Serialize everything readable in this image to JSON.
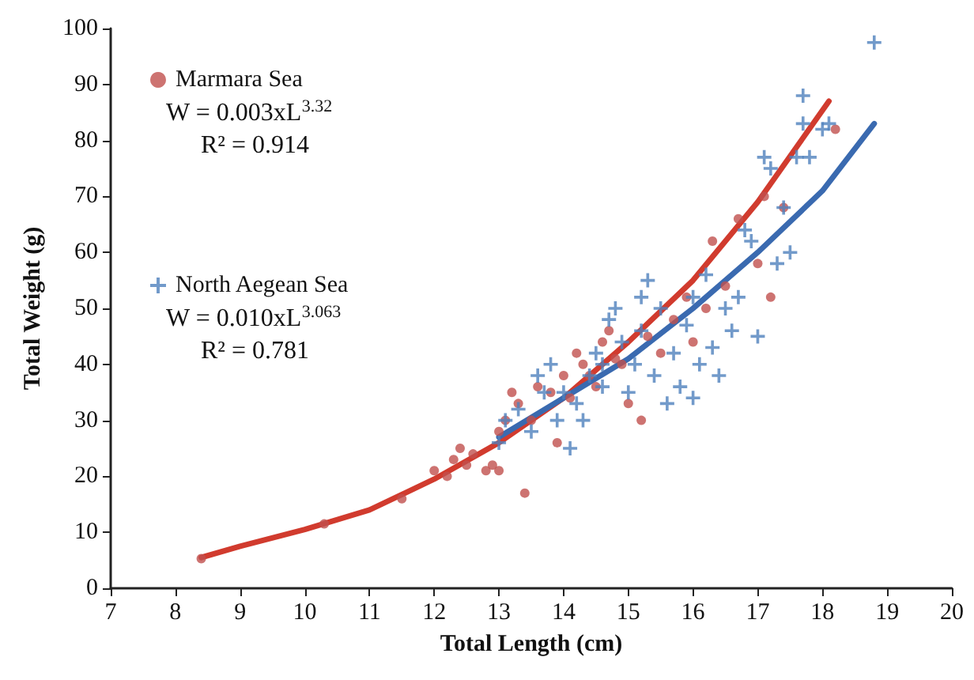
{
  "chart_data": {
    "type": "scatter",
    "xlabel": "Total Length (cm)",
    "ylabel": "Total Weight (g)",
    "xlim": [
      7,
      20
    ],
    "xticks": [
      7,
      8,
      9,
      10,
      11,
      12,
      13,
      14,
      15,
      16,
      17,
      18,
      19,
      20
    ],
    "ylim": [
      0,
      100
    ],
    "yticks": [
      0,
      10,
      20,
      30,
      40,
      50,
      60,
      70,
      80,
      90,
      100
    ],
    "grid": false,
    "legend": "top left",
    "annotations": [
      "W = 0.003xL$^{3.32}$",
      "R² = 0.914",
      "W = 0.010xL$^{3.063}$",
      "R² = 0.781"
    ],
    "series": [
      {
        "name": "Marmara Sea",
        "color": "#c0504d",
        "marker": "circle",
        "x": [
          8.4,
          10.3,
          11.5,
          12.0,
          12.2,
          12.3,
          12.4,
          12.5,
          12.6,
          12.8,
          12.9,
          13.0,
          13.4,
          13.0,
          13.1,
          13.2,
          13.3,
          13.5,
          13.6,
          13.8,
          14.0,
          14.1,
          14.2,
          14.3,
          14.4,
          14.5,
          14.6,
          14.7,
          14.8,
          15.0,
          15.2,
          15.3,
          15.5,
          15.7,
          15.9,
          16.0,
          16.2,
          16.3,
          16.5,
          16.7,
          17.0,
          17.2,
          17.4,
          18.2,
          17.1,
          13.9,
          14.9
        ],
        "values": [
          5.3,
          11.5,
          16,
          21,
          20,
          23,
          25,
          22,
          24,
          21,
          22,
          21,
          17,
          28,
          30,
          35,
          33,
          30,
          36,
          35,
          38,
          34,
          42,
          40,
          38,
          36,
          44,
          46,
          41,
          33,
          30,
          45,
          42,
          48,
          52,
          44,
          50,
          62,
          54,
          66,
          58,
          52,
          68,
          82,
          70,
          26,
          40
        ]
      },
      {
        "name": "North Aegean Sea",
        "color": "#4f81bd",
        "marker": "cross",
        "x": [
          13.0,
          13.1,
          13.3,
          13.5,
          13.6,
          13.7,
          13.8,
          14.0,
          14.1,
          14.2,
          14.3,
          14.4,
          14.5,
          14.6,
          14.7,
          14.8,
          14.9,
          15.0,
          15.1,
          15.2,
          15.3,
          15.4,
          15.5,
          15.6,
          15.7,
          15.8,
          15.9,
          16.0,
          16.1,
          16.2,
          16.3,
          16.4,
          16.5,
          16.6,
          16.7,
          16.8,
          16.9,
          17.0,
          17.1,
          17.2,
          17.3,
          17.4,
          17.5,
          17.6,
          17.7,
          17.7,
          17.8,
          18.0,
          18.1,
          18.8,
          15.2,
          14.6,
          13.9,
          16.0
        ],
        "values": [
          26,
          30,
          32,
          28,
          38,
          35,
          40,
          35,
          25,
          33,
          30,
          38,
          42,
          36,
          48,
          50,
          44,
          35,
          40,
          46,
          55,
          38,
          50,
          33,
          42,
          36,
          47,
          52,
          40,
          56,
          43,
          38,
          50,
          46,
          52,
          64,
          62,
          45,
          77,
          75,
          58,
          68,
          60,
          77,
          83,
          88,
          77,
          82,
          83,
          97.5,
          52,
          40,
          30,
          34
        ]
      },
      {
        "type": "line",
        "color": "#d13b2e",
        "marker": "none",
        "x": [
          8.4,
          9,
          10,
          11,
          12,
          13,
          14,
          15,
          16,
          17,
          18.1
        ],
        "values": [
          5.5,
          7.5,
          10.5,
          14,
          19.5,
          26,
          34,
          44,
          55,
          69,
          87
        ]
      },
      {
        "type": "line",
        "color": "#3a6ab0",
        "marker": "none",
        "x": [
          13,
          14,
          15,
          16,
          17,
          18,
          18.8
        ],
        "values": [
          27,
          34,
          41,
          50,
          60,
          71,
          83
        ]
      }
    ]
  }
}
